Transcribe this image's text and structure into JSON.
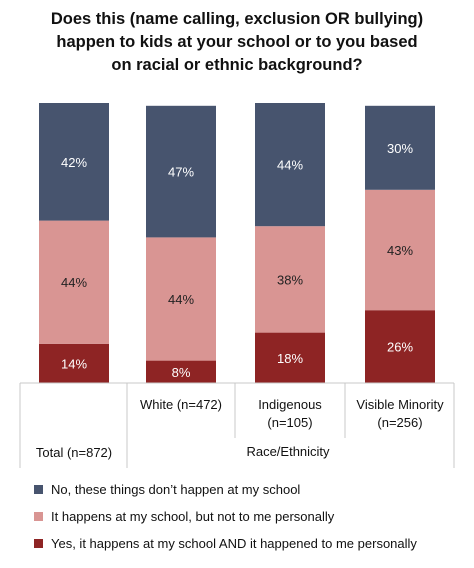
{
  "chart_data": {
    "type": "bar",
    "stacked": true,
    "percent": true,
    "title_lines": [
      "Does this (name calling, exclusion OR bullying)",
      "happen to kids at your school or to you based",
      "on racial or ethnic background?"
    ],
    "categories": [
      {
        "lines": [
          "Total (n=872)"
        ]
      },
      {
        "lines": [
          "White (n=472)"
        ]
      },
      {
        "lines": [
          "Indigenous",
          "(n=105)"
        ]
      },
      {
        "lines": [
          "Visible Minority",
          "(n=256)"
        ]
      }
    ],
    "group_label": "Race/Ethnicity",
    "ylim": [
      0,
      100
    ],
    "series": [
      {
        "name": "Yes, it happens at my school AND it happened to me personally",
        "color": "#8e2424",
        "label_color": "#ffffff",
        "values": [
          14,
          8,
          18,
          26
        ],
        "labels": [
          "14%",
          "8%",
          "18%",
          "26%"
        ]
      },
      {
        "name": "It happens at my school, but not to me personally",
        "color": "#d99593",
        "label_color": "#222222",
        "values": [
          44,
          44,
          38,
          43
        ],
        "labels": [
          "44%",
          "44%",
          "38%",
          "43%"
        ]
      },
      {
        "name": "No, these things don’t happen at my school",
        "color": "#47546e",
        "label_color": "#ffffff",
        "values": [
          42,
          47,
          44,
          30
        ],
        "labels": [
          "42%",
          "47%",
          "44%",
          "30%"
        ]
      }
    ],
    "legend_order": [
      2,
      1,
      0
    ],
    "legend_position": "bottom",
    "grid": false
  }
}
